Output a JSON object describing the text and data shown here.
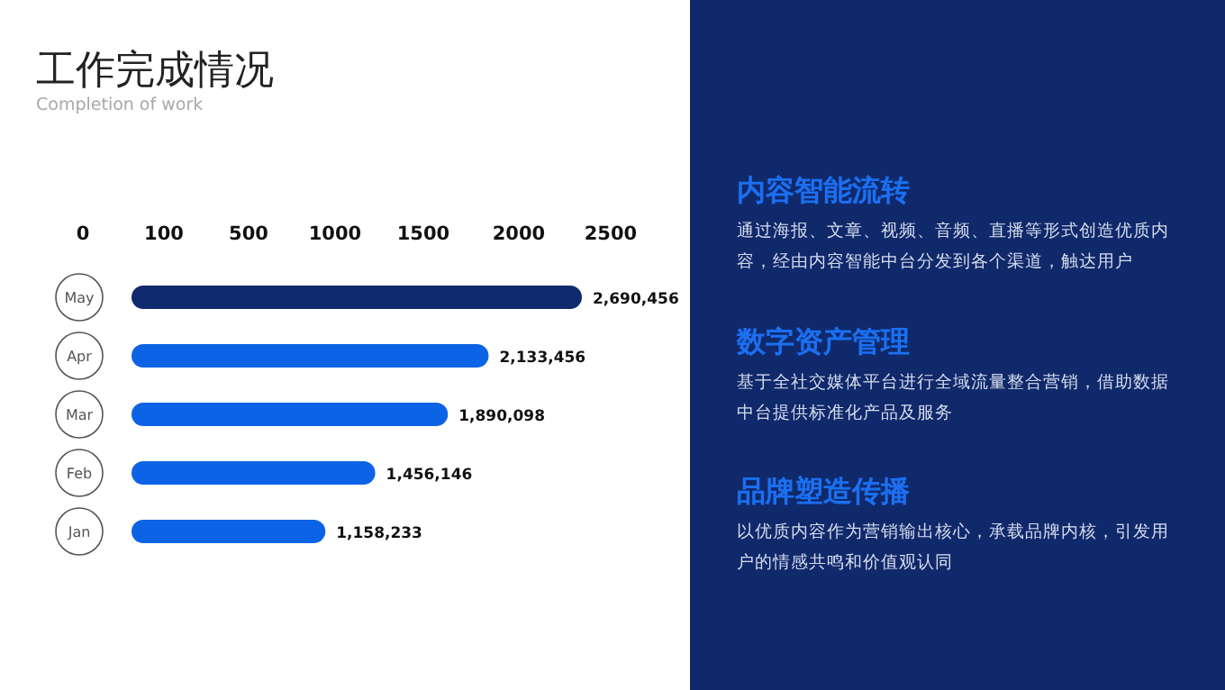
{
  "chart_data": [
    {
      "type": "bar",
      "orientation": "horizontal",
      "title": "工作完成情况",
      "subtitle": "Completion of work",
      "categories": [
        "May",
        "Apr",
        "Mar",
        "Feb",
        "Jan"
      ],
      "values": [
        2690456,
        2133456,
        1890098,
        1456146,
        1158233
      ],
      "colors": [
        "#0f2a6e",
        "#0d63e6",
        "#0d63e6",
        "#0d63e6",
        "#0d63e6"
      ],
      "value_labels": [
        "2,690,456",
        "2,133,456",
        "1,890,098",
        "1,456,146",
        "1,158,233"
      ],
      "annotations": [
        "0",
        "100",
        "500",
        "1000",
        "1500",
        "2000",
        "2500"
      ]
    },
    {
      "type": "other",
      "annotations": [
        "内容智能流转",
        "通过海报、文章、视频、音频、直播等形式创造优质内容，经由内容智能中台分发到各个渠道，触达用户",
        "数字资产管理",
        "基于全社交媒体平台进行全域流量整合营销，借助数据中台提供标准化产品及服务",
        "品牌塑造传播",
        "以优质内容作为营销输出核心，承载品牌内核，引发用户的情感共鸣和价值观认同"
      ]
    }
  ]
}
